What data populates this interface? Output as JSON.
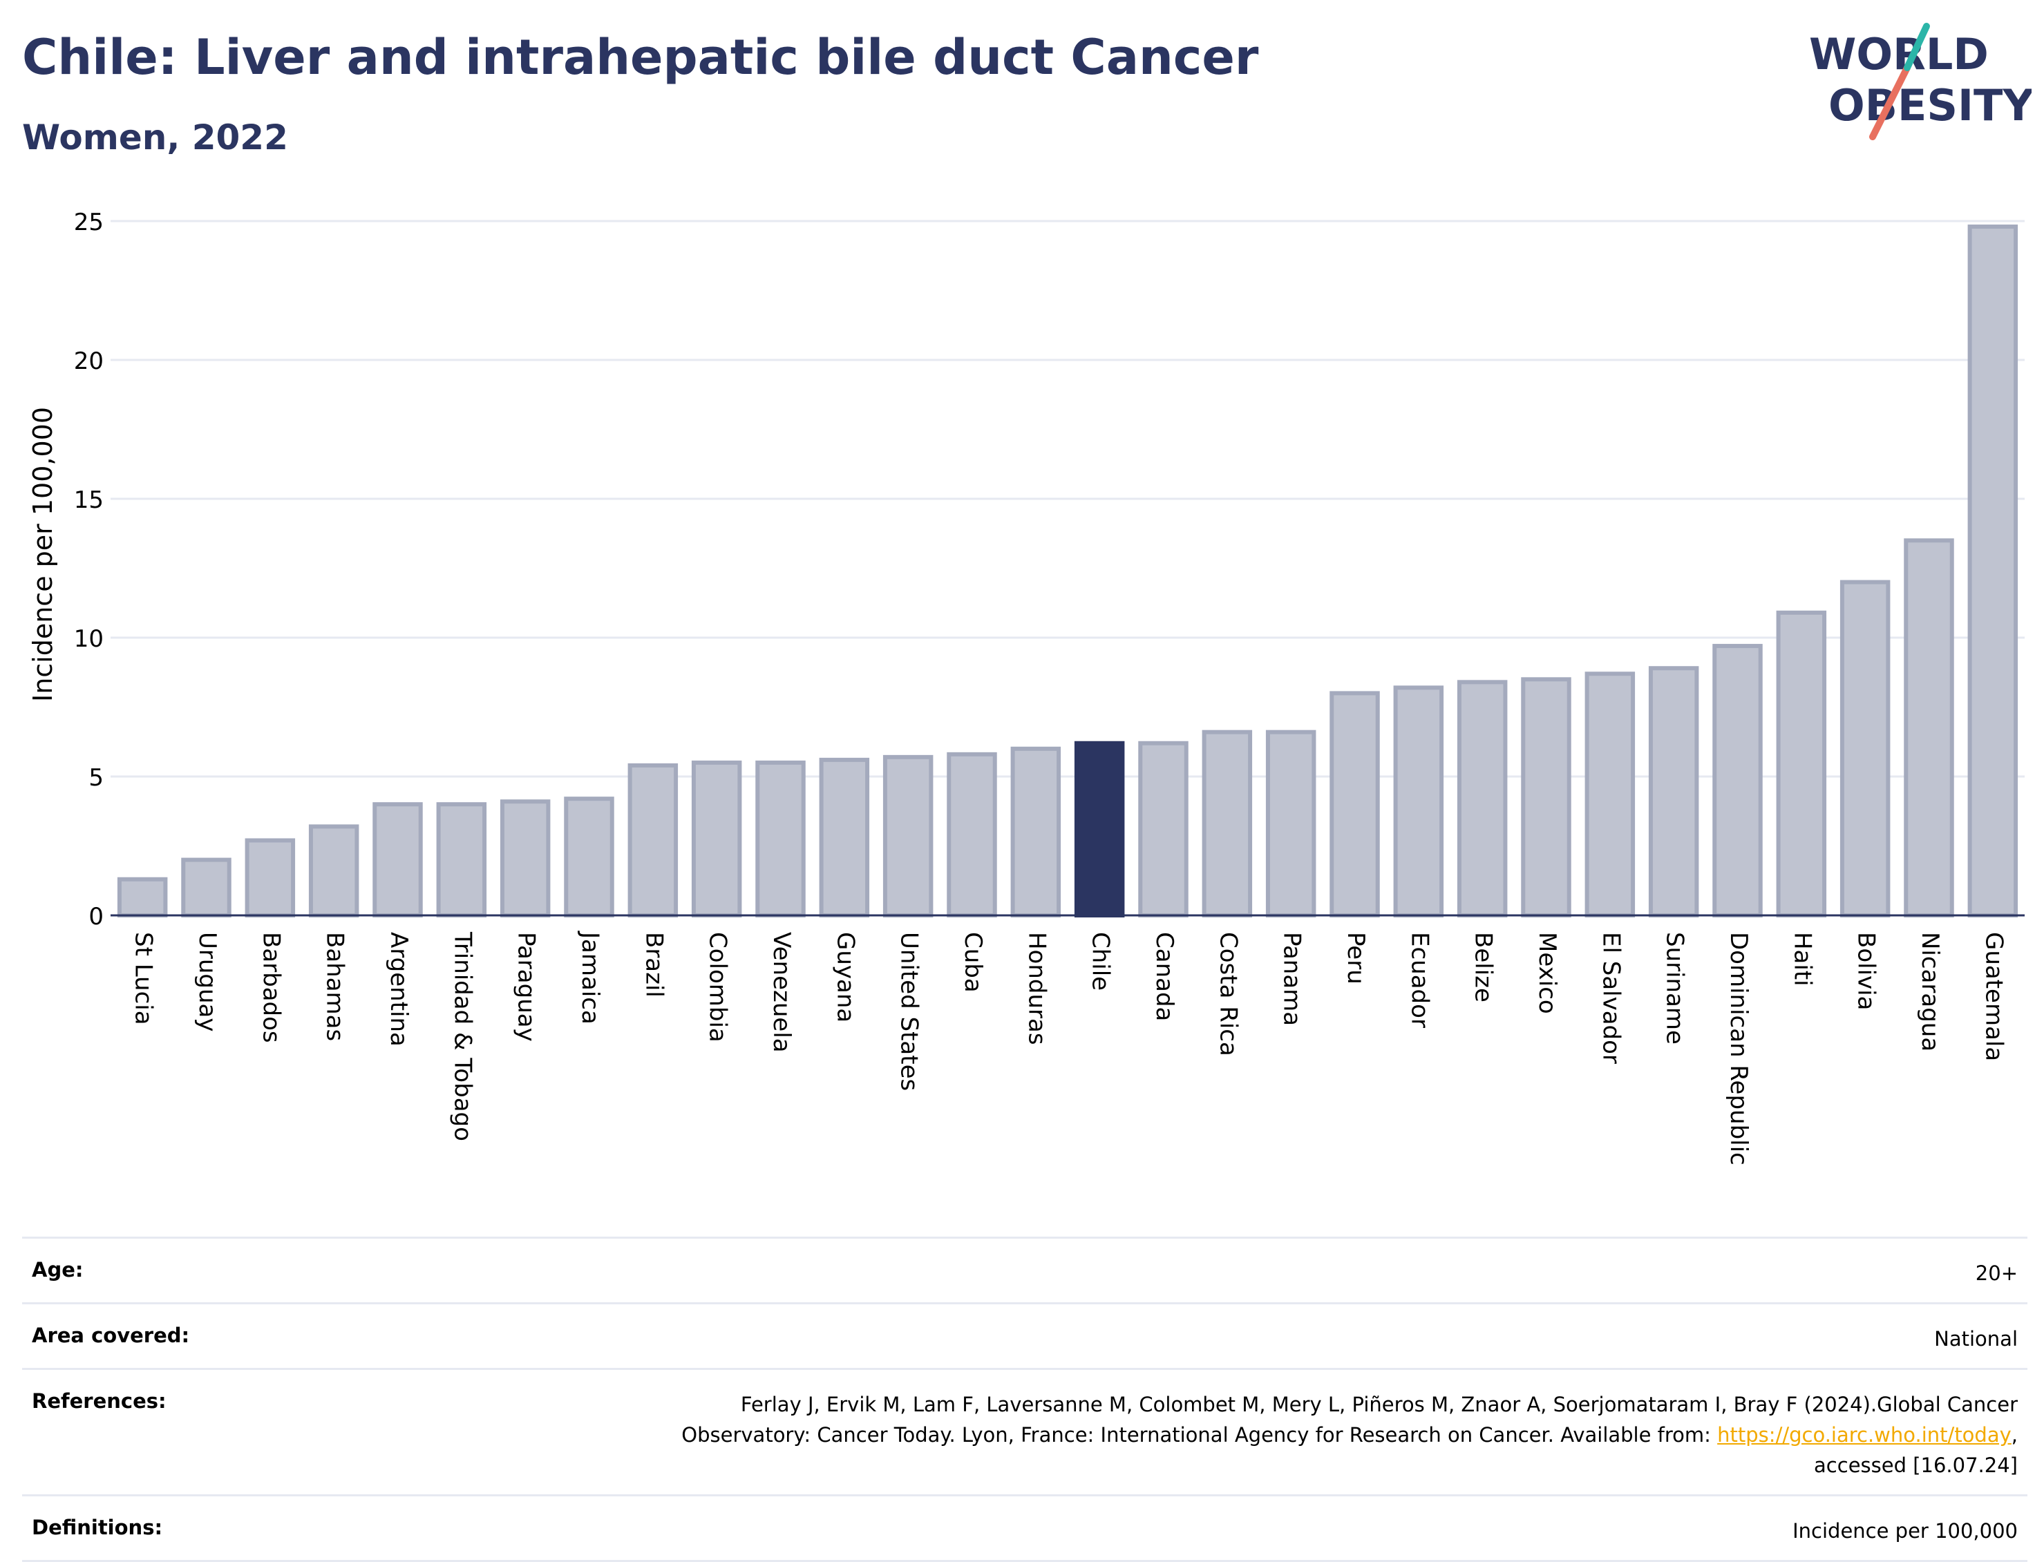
{
  "header": {
    "title": "Chile: Liver and intrahepatic bile duct Cancer",
    "subtitle": "Women, 2022"
  },
  "logo": {
    "line1": "WORLD",
    "line2": "OBESITY"
  },
  "colors": {
    "highlight": "#2b3561",
    "bar_fill": "#bfc3d0",
    "bar_stroke": "#a4aabd",
    "grid": "#e6e9f1",
    "logo_teal": "#2bb5a8",
    "logo_coral": "#e8705f"
  },
  "chart_data": {
    "type": "bar",
    "ylabel": "Incidence per 100,000",
    "xlabel": "",
    "ylim": [
      0,
      25
    ],
    "yticks": [
      0,
      5,
      10,
      15,
      20,
      25
    ],
    "grid": true,
    "highlight": "Chile",
    "categories": [
      "St Lucia",
      "Uruguay",
      "Barbados",
      "Bahamas",
      "Argentina",
      "Trinidad & Tobago",
      "Paraguay",
      "Jamaica",
      "Brazil",
      "Colombia",
      "Venezuela",
      "Guyana",
      "United States",
      "Cuba",
      "Honduras",
      "Chile",
      "Canada",
      "Costa Rica",
      "Panama",
      "Peru",
      "Ecuador",
      "Belize",
      "Mexico",
      "El Salvador",
      "Suriname",
      "Dominican Republic",
      "Haiti",
      "Bolivia",
      "Nicaragua",
      "Guatemala"
    ],
    "values": [
      1.3,
      2.0,
      2.7,
      3.2,
      4.0,
      4.0,
      4.1,
      4.2,
      5.4,
      5.5,
      5.5,
      5.6,
      5.7,
      5.8,
      6.0,
      6.2,
      6.2,
      6.6,
      6.6,
      8.0,
      8.2,
      8.4,
      8.5,
      8.7,
      8.9,
      9.7,
      10.9,
      12.0,
      13.5,
      24.8
    ]
  },
  "meta": {
    "age_label": "Age:",
    "age_value": "20+",
    "area_label": "Area covered:",
    "area_value": "National",
    "references_label": "References:",
    "references_line1": "Ferlay J, Ervik M, Lam F, Laversanne M, Colombet M, Mery L, Piñeros M, Znaor A, Soerjomataram I, Bray F (2024).Global Cancer",
    "references_line2_pre": "Observatory: Cancer Today. Lyon, France: International Agency for Research on Cancer. Available from: ",
    "references_link": "https://gco.iarc.who.int/today",
    "references_line2_post": ",",
    "references_line3": "accessed [16.07.24]",
    "definitions_label": "Definitions:",
    "definitions_value": "Incidence per 100,000"
  }
}
